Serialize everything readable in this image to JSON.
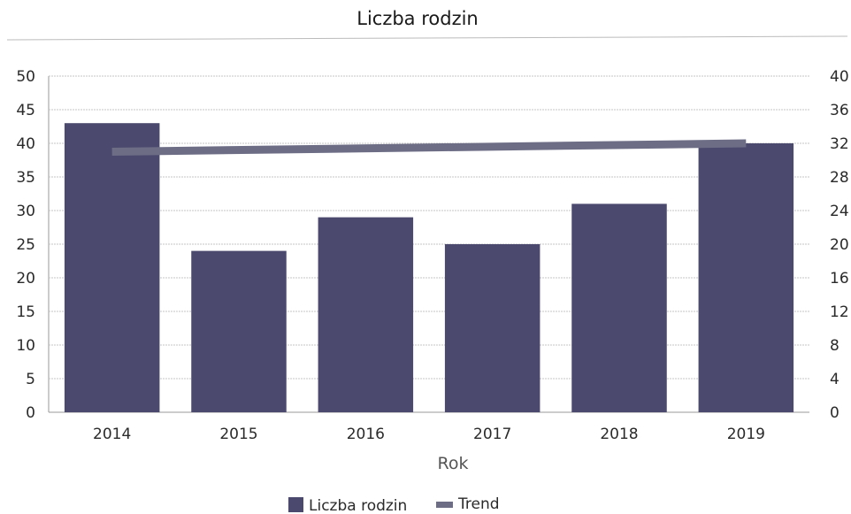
{
  "chart_data": {
    "type": "bar",
    "title": "Liczba rodzin",
    "xlabel": "Rok",
    "ylabel": "",
    "categories": [
      "2014",
      "2015",
      "2016",
      "2017",
      "2018",
      "2019"
    ],
    "series": [
      {
        "name": "Liczba rodzin",
        "values": [
          43,
          24,
          29,
          25,
          31,
          40
        ],
        "color": "#4b4a6e"
      },
      {
        "name": "Trend",
        "type": "line",
        "values": [
          31,
          31.2,
          31.4,
          31.6,
          31.8,
          32
        ],
        "axis": "right",
        "color": "#6d6d86"
      }
    ],
    "ylim": [
      0,
      50
    ],
    "y_ticks": [
      "0",
      "5",
      "10",
      "15",
      "20",
      "25",
      "30",
      "35",
      "40",
      "45",
      "50"
    ],
    "y2lim": [
      0,
      40
    ],
    "y2_ticks": [
      "0",
      "4",
      "8",
      "12",
      "16",
      "20",
      "24",
      "28",
      "32",
      "36",
      "40"
    ],
    "grid": true,
    "legend": "bottom"
  }
}
